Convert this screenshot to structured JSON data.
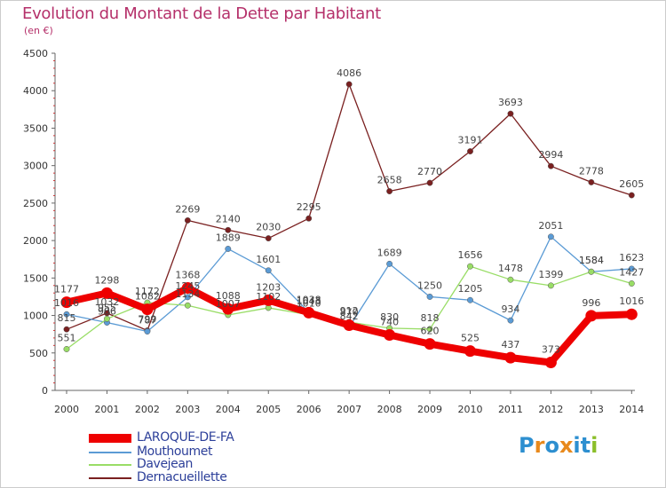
{
  "title": "Evolution du Montant de la Dette par Habitant",
  "subtitle": "(en €)",
  "logo": {
    "letters": [
      "P",
      "r",
      "o",
      "x",
      "i",
      "t",
      "i"
    ],
    "colors": [
      "#2d8fd0",
      "#e8891c",
      "#2d8fd0",
      "#e8891c",
      "#2d8fd0",
      "#2d8fd0",
      "#8bbf2a"
    ]
  },
  "chart_data": {
    "type": "line",
    "categories": [
      "2000",
      "2001",
      "2002",
      "2003",
      "2004",
      "2005",
      "2006",
      "2007",
      "2008",
      "2009",
      "2010",
      "2011",
      "2012",
      "2013",
      "2014"
    ],
    "ylim": [
      0,
      4500
    ],
    "yticks": [
      "0",
      "500",
      "1000",
      "1500",
      "2000",
      "2500",
      "3000",
      "3500",
      "4000",
      "4500"
    ],
    "grid": false,
    "legend_position": "bottom-left",
    "series": [
      {
        "name": "LAROQUE-DE-FA",
        "color": "#ee0000",
        "values": [
          1177,
          1298,
          1082,
          1368,
          1088,
          1203,
          1038,
          870,
          740,
          620,
          525,
          437,
          373,
          996,
          1016
        ],
        "labels": [
          "1177",
          "1298",
          "1082",
          "1368",
          "1088",
          "1203",
          "1038",
          "870",
          "740",
          "620",
          "525",
          "437",
          "373",
          "996",
          "1016"
        ]
      },
      {
        "name": "Mouthoumet",
        "color": "#5b9bd5",
        "values": [
          1016,
          906,
          787,
          1245,
          1889,
          1601,
          1043,
          842,
          1689,
          1250,
          1205,
          934,
          2051,
          1584,
          1623
        ],
        "labels": [
          "1016",
          "906",
          "787",
          "1245",
          "1889",
          "1601",
          "1043",
          "842",
          "1689",
          "1250",
          "1205",
          "934",
          "2051",
          "1584",
          "1623"
        ]
      },
      {
        "name": "Davejean",
        "color": "#99dd66",
        "values": [
          551,
          955,
          1172,
          1134,
          1007,
          1102,
          1010,
          912,
          830,
          818,
          1656,
          1478,
          1399,
          1584,
          1427
        ],
        "labels": [
          "551",
          "955",
          "1172",
          "1134",
          "1007",
          "1102",
          "1010",
          "912",
          "830",
          "818",
          "1656",
          "1478",
          "1399",
          "1584",
          "1427"
        ]
      },
      {
        "name": "Dernacueillette",
        "color": "#7a2020",
        "values": [
          815,
          1032,
          799,
          2269,
          2140,
          2030,
          2295,
          4086,
          2658,
          2770,
          3191,
          3693,
          2994,
          2778,
          2605
        ],
        "labels": [
          "815",
          "1032",
          "799",
          "2269",
          "2140",
          "2030",
          "2295",
          "4086",
          "2658",
          "2770",
          "3191",
          "3693",
          "2994",
          "2778",
          "2605"
        ]
      }
    ]
  }
}
